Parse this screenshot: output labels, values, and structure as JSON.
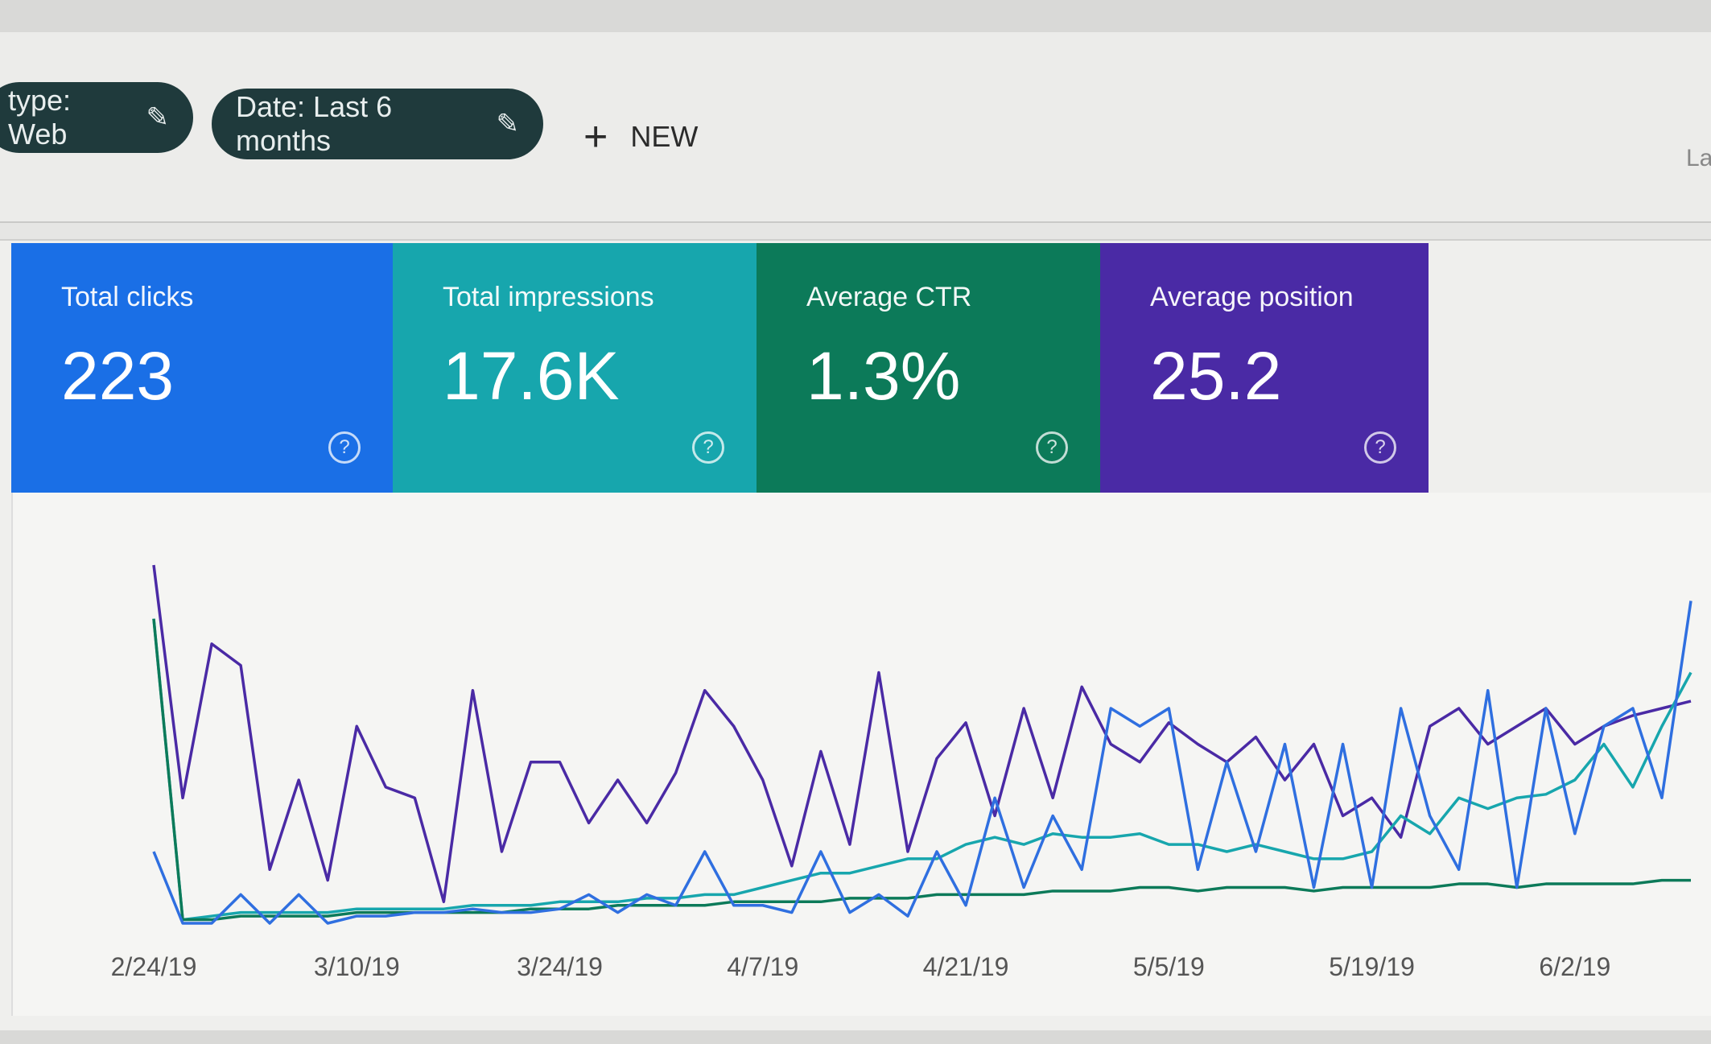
{
  "filters": {
    "chips": [
      {
        "label": "type: Web",
        "icon": "pencil-icon"
      },
      {
        "label": "Date: Last 6 months",
        "icon": "pencil-icon"
      }
    ],
    "new_label": "NEW",
    "new_icon": "plus-icon",
    "right_text": "La"
  },
  "cards": [
    {
      "label": "Total clicks",
      "value": "223",
      "color": "#1a6fe6"
    },
    {
      "label": "Total impressions",
      "value": "17.6K",
      "color": "#17a6ad"
    },
    {
      "label": "Average CTR",
      "value": "1.3%",
      "color": "#0c7a59"
    },
    {
      "label": "Average position",
      "value": "25.2",
      "color": "#4a2aa5"
    }
  ],
  "help_glyph": "?",
  "chart_data": {
    "type": "line",
    "x_ticks": [
      "2/24/19",
      "3/10/19",
      "3/24/19",
      "4/7/19",
      "4/21/19",
      "5/5/19",
      "5/19/19",
      "6/2/19"
    ],
    "x": [
      "2/24",
      "2/26",
      "2/28",
      "3/2",
      "3/4",
      "3/6",
      "3/8",
      "3/10",
      "3/12",
      "3/14",
      "3/16",
      "3/18",
      "3/20",
      "3/22",
      "3/24",
      "3/26",
      "3/28",
      "3/30",
      "4/1",
      "4/3",
      "4/5",
      "4/7",
      "4/9",
      "4/11",
      "4/13",
      "4/15",
      "4/17",
      "4/19",
      "4/21",
      "4/23",
      "4/25",
      "4/27",
      "4/29",
      "5/1",
      "5/3",
      "5/5",
      "5/7",
      "5/9",
      "5/11",
      "5/13",
      "5/15",
      "5/17",
      "5/19",
      "5/21",
      "5/23",
      "5/25",
      "5/27",
      "5/29",
      "5/31",
      "6/2",
      "6/4",
      "6/6",
      "6/8",
      "6/10"
    ],
    "grid": false,
    "legend": "none",
    "series": [
      {
        "color": "#4a2aa5",
        "values": [
          100,
          35,
          78,
          72,
          15,
          40,
          12,
          55,
          38,
          35,
          6,
          65,
          20,
          45,
          45,
          28,
          40,
          28,
          42,
          65,
          55,
          40,
          16,
          48,
          22,
          70,
          20,
          46,
          56,
          30,
          60,
          35,
          66,
          50,
          45,
          56,
          50,
          45,
          52,
          40,
          50,
          30,
          35,
          24,
          55,
          60,
          50,
          55,
          60,
          50,
          55,
          58,
          60,
          62
        ]
      },
      {
        "color": "#17a6ad",
        "values": [
          85,
          1,
          2,
          3,
          3,
          3,
          3,
          4,
          4,
          4,
          4,
          5,
          5,
          5,
          6,
          6,
          6,
          7,
          7,
          8,
          8,
          10,
          12,
          14,
          14,
          16,
          18,
          18,
          22,
          24,
          22,
          25,
          24,
          24,
          25,
          22,
          22,
          20,
          22,
          20,
          18,
          18,
          20,
          30,
          25,
          35,
          32,
          35,
          36,
          40,
          50,
          38,
          55,
          70
        ]
      },
      {
        "color": "#0c7a59",
        "values": [
          85,
          1,
          1,
          2,
          2,
          2,
          2,
          3,
          3,
          3,
          3,
          3,
          3,
          4,
          4,
          4,
          5,
          5,
          5,
          5,
          6,
          6,
          6,
          6,
          7,
          7,
          7,
          8,
          8,
          8,
          8,
          9,
          9,
          9,
          10,
          10,
          9,
          10,
          10,
          10,
          9,
          10,
          10,
          10,
          10,
          11,
          11,
          10,
          11,
          11,
          11,
          11,
          12,
          12
        ]
      },
      {
        "color": "#2f6fe0",
        "values": [
          20,
          0,
          0,
          8,
          0,
          8,
          0,
          2,
          2,
          3,
          3,
          4,
          3,
          3,
          4,
          8,
          3,
          8,
          5,
          20,
          5,
          5,
          3,
          20,
          3,
          8,
          2,
          20,
          5,
          35,
          10,
          30,
          15,
          60,
          55,
          60,
          15,
          45,
          20,
          50,
          10,
          50,
          10,
          60,
          30,
          15,
          65,
          10,
          60,
          25,
          55,
          60,
          35,
          90
        ]
      }
    ]
  }
}
